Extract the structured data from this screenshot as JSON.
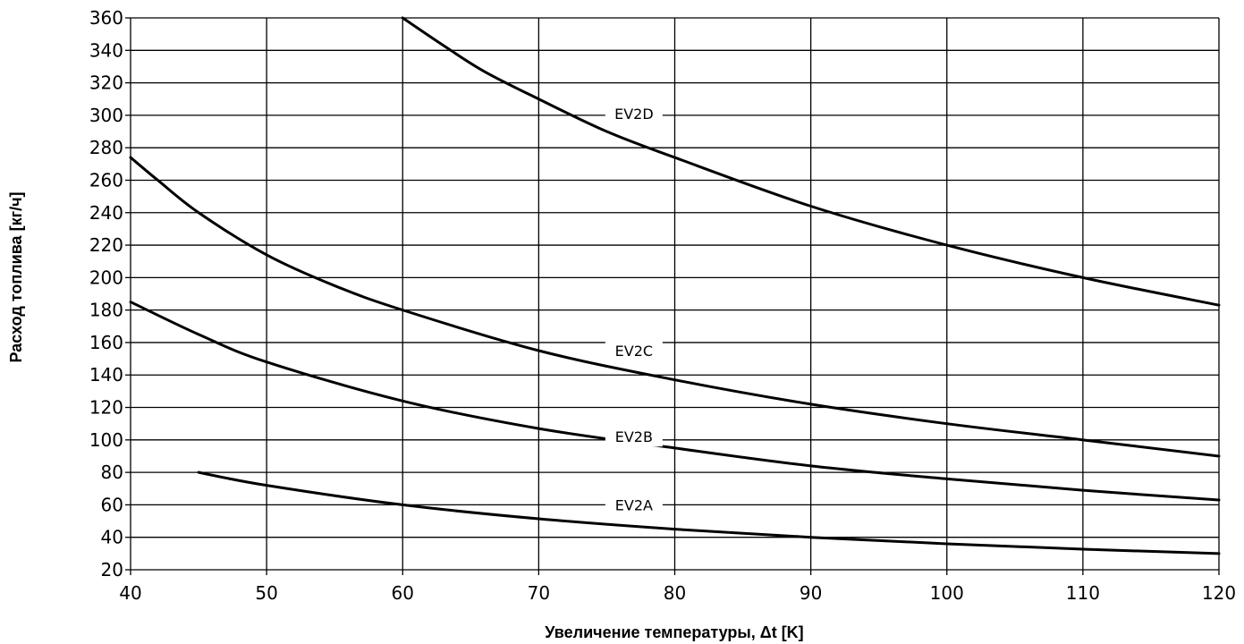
{
  "chart_data": {
    "type": "line",
    "title": "",
    "xlabel": "Увеличение температуры, Δt [K]",
    "ylabel": "Расход топлива [кг/ч]",
    "xlim": [
      40,
      120
    ],
    "ylim": [
      20,
      360
    ],
    "x_ticks": [
      40,
      50,
      60,
      70,
      80,
      90,
      100,
      110,
      120
    ],
    "y_ticks": [
      20,
      40,
      60,
      80,
      100,
      120,
      140,
      160,
      180,
      200,
      220,
      240,
      260,
      280,
      300,
      320,
      340,
      360
    ],
    "grid": true,
    "legend": "inline labels on curves",
    "series": [
      {
        "name": "EV2A",
        "label_x": 77,
        "label_y": 60,
        "x": [
          45,
          50,
          60,
          70,
          80,
          90,
          100,
          110,
          120
        ],
        "y": [
          80,
          72,
          60,
          51.4,
          45,
          40,
          36,
          32.7,
          30
        ]
      },
      {
        "name": "EV2B",
        "label_x": 77,
        "label_y": 102,
        "x": [
          40,
          45,
          50,
          60,
          70,
          80,
          90,
          100,
          110,
          120
        ],
        "y": [
          185,
          165,
          148,
          124,
          107,
          95,
          84,
          76,
          69,
          63
        ]
      },
      {
        "name": "EV2C",
        "label_x": 77,
        "label_y": 155,
        "x": [
          40,
          42,
          45,
          50,
          55,
          60,
          70,
          80,
          90,
          100,
          110,
          120
        ],
        "y": [
          274,
          260,
          240,
          214,
          195,
          180,
          155,
          137,
          122,
          110,
          100,
          90
        ]
      },
      {
        "name": "EV2D",
        "label_x": 77,
        "label_y": 301,
        "x": [
          60,
          63,
          66,
          70,
          75,
          80,
          90,
          100,
          110,
          120
        ],
        "y": [
          360,
          343,
          327,
          310,
          290,
          274,
          244,
          220,
          200,
          183
        ]
      }
    ]
  }
}
